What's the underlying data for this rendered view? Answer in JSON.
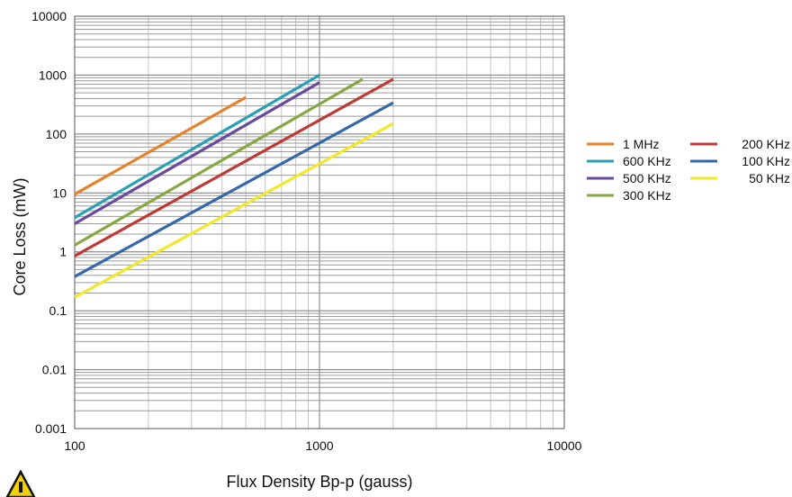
{
  "chart_data": {
    "type": "line",
    "title": "",
    "xlabel": "Flux Density Bp-p (gauss)",
    "ylabel": "Core Loss (mW)",
    "x_scale": "log",
    "y_scale": "log",
    "xlim": [
      100,
      10000
    ],
    "ylim": [
      0.001,
      10000
    ],
    "grid": true,
    "legend_placement": "right",
    "x_tick_labels": [
      {
        "value": 100,
        "label": "100"
      },
      {
        "value": 1000,
        "label": "1000"
      },
      {
        "value": 10000,
        "label": "10000"
      }
    ],
    "y_tick_labels": [
      {
        "value": 0.001,
        "label": "0.001"
      },
      {
        "value": 0.01,
        "label": "0.01"
      },
      {
        "value": 0.1,
        "label": "0.1"
      },
      {
        "value": 1,
        "label": "1"
      },
      {
        "value": 10,
        "label": "10"
      },
      {
        "value": 100,
        "label": "100"
      },
      {
        "value": 1000,
        "label": "1000"
      },
      {
        "value": 10000,
        "label": "10000"
      }
    ],
    "series": [
      {
        "name": "1 MHz",
        "color": "#e8822a",
        "points": [
          [
            100,
            9.5
          ],
          [
            500,
            420
          ]
        ]
      },
      {
        "name": "600 KHz",
        "color": "#2aa0b4",
        "points": [
          [
            100,
            3.8
          ],
          [
            1000,
            1000
          ]
        ]
      },
      {
        "name": "500 KHz",
        "color": "#6a4a9c",
        "points": [
          [
            100,
            3.0
          ],
          [
            1000,
            750
          ]
        ]
      },
      {
        "name": "300 KHz",
        "color": "#86a840",
        "points": [
          [
            100,
            1.3
          ],
          [
            1500,
            850
          ]
        ]
      },
      {
        "name": "200 KHz",
        "color": "#bd3a36",
        "points": [
          [
            100,
            0.85
          ],
          [
            2000,
            850
          ]
        ]
      },
      {
        "name": "100 KHz",
        "color": "#3568ab",
        "points": [
          [
            100,
            0.38
          ],
          [
            2000,
            340
          ]
        ]
      },
      {
        "name": "50 KHz",
        "color": "#f0e82c",
        "points": [
          [
            100,
            0.17
          ],
          [
            2000,
            150
          ]
        ]
      }
    ]
  },
  "corner_icon": {
    "name": "warning-icon",
    "color": "#f2d100"
  }
}
